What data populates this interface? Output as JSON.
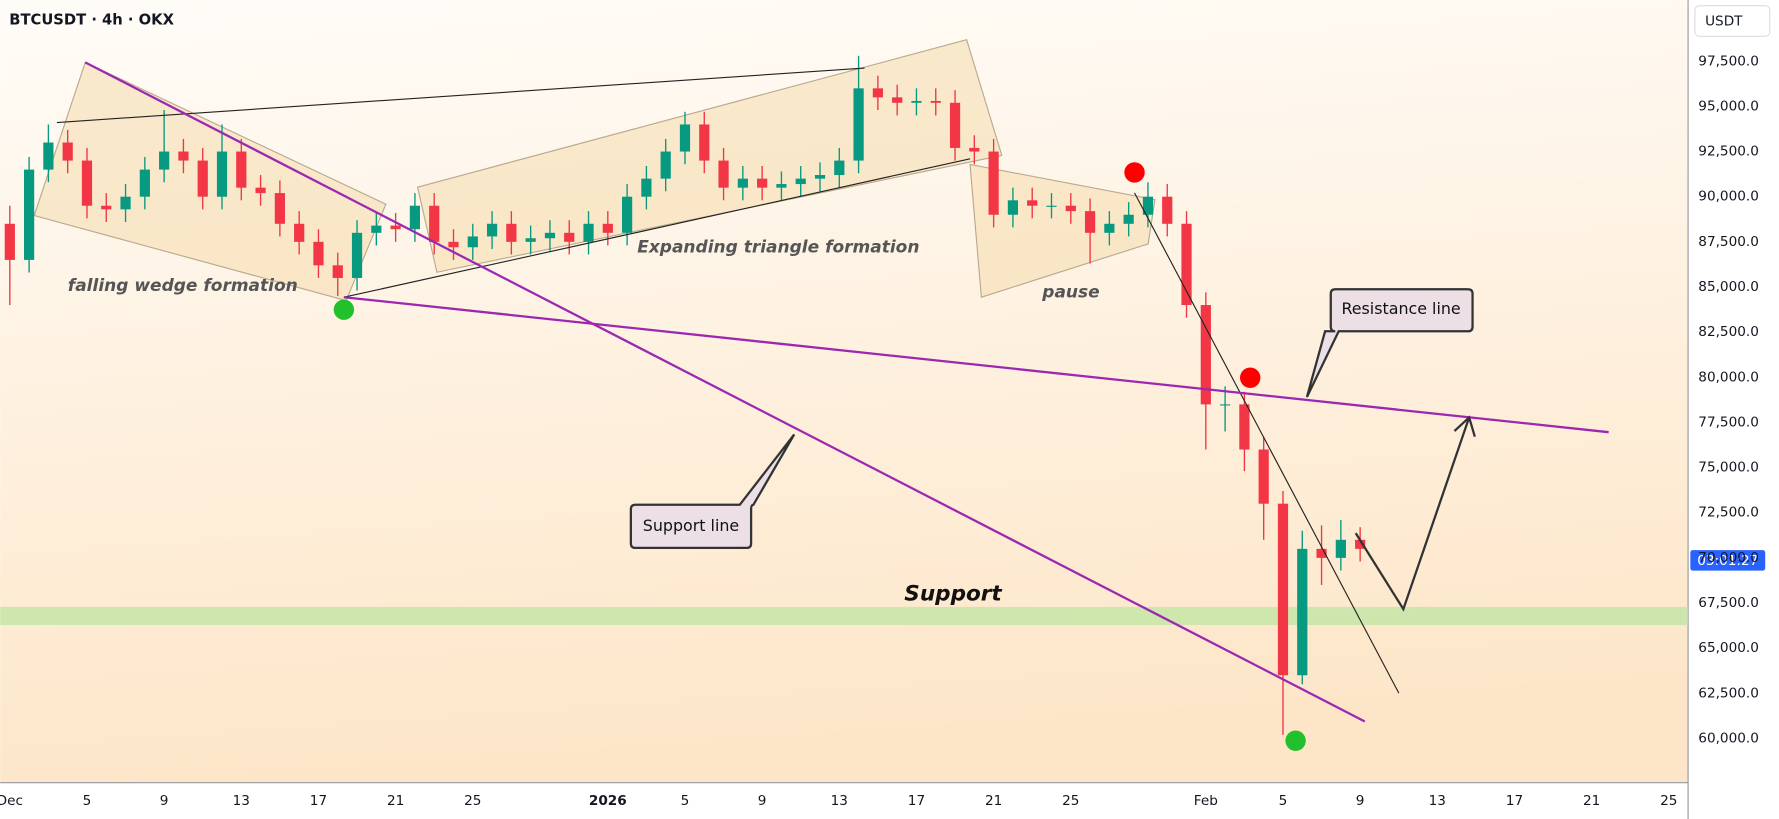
{
  "chart_data": {
    "type": "candlestick",
    "title": "BTCUSDT · 4h · OKX",
    "y_axis_unit": "USDT",
    "countdown": "03:01:27",
    "annotations": [
      "falling wedge formation",
      "Expanding triangle formation",
      "pause",
      "Support",
      "Support line",
      "Resistance line"
    ],
    "up_color": "#089981",
    "down_color": "#f23645",
    "grid": false,
    "x": [
      0,
      1,
      2,
      3,
      4,
      5,
      6,
      7,
      8,
      9,
      10,
      11,
      12,
      13,
      14,
      15,
      16,
      17,
      18,
      19,
      20,
      21,
      22,
      23,
      24,
      25,
      26,
      27,
      28,
      29,
      30,
      31,
      32,
      33,
      34,
      35,
      36,
      37,
      38,
      39,
      40,
      41,
      42,
      43,
      44,
      45,
      46,
      47,
      48,
      49,
      50,
      51,
      52,
      53,
      54,
      55,
      56,
      57,
      58,
      59,
      60,
      61,
      62,
      63,
      64,
      65,
      66,
      67,
      68,
      69,
      70
    ],
    "open": [
      88500,
      86500,
      91500,
      93000,
      92000,
      89500,
      89300,
      90000,
      91500,
      92500,
      92000,
      90000,
      92500,
      90500,
      90200,
      88500,
      87500,
      86200,
      85500,
      88000,
      88400,
      88200,
      89500,
      87500,
      87200,
      87800,
      88500,
      87500,
      87700,
      88000,
      87500,
      88500,
      88000,
      90000,
      91000,
      92500,
      94000,
      92000,
      90500,
      91000,
      90500,
      90700,
      91000,
      91200,
      92000,
      96000,
      95500,
      95200,
      95300,
      95200,
      92700,
      92500,
      89000,
      89800,
      89500,
      89500,
      89200,
      88000,
      88500,
      89000,
      90000,
      88500,
      84000,
      78500,
      78500,
      76000,
      73000,
      63500,
      70500,
      70000,
      71000
    ],
    "high": [
      89500,
      92200,
      94000,
      93700,
      92700,
      90200,
      90700,
      92200,
      94800,
      93200,
      92700,
      94000,
      93200,
      91200,
      90900,
      89200,
      88200,
      86900,
      88700,
      89100,
      89100,
      90200,
      90200,
      88200,
      88500,
      89200,
      89200,
      88400,
      88700,
      88700,
      89200,
      89200,
      90700,
      91700,
      93200,
      94700,
      94700,
      92700,
      91700,
      91700,
      91400,
      91700,
      91900,
      92700,
      97800,
      96700,
      96200,
      96000,
      96000,
      95900,
      93400,
      93200,
      90500,
      90500,
      90200,
      90200,
      89900,
      89200,
      89700,
      90800,
      90700,
      89200,
      84700,
      79500,
      79200,
      76700,
      73700,
      71500,
      71800,
      72100,
      71700
    ],
    "low": [
      84000,
      85800,
      90800,
      91300,
      88800,
      88600,
      88600,
      89300,
      90800,
      91300,
      89300,
      89300,
      89800,
      89500,
      87800,
      86800,
      85500,
      84500,
      84800,
      87300,
      87500,
      87500,
      86800,
      86500,
      86500,
      87100,
      86800,
      86800,
      87000,
      86800,
      86800,
      87300,
      87300,
      89300,
      90300,
      91800,
      91300,
      89800,
      89800,
      89800,
      89800,
      90000,
      90300,
      90500,
      91300,
      94800,
      94500,
      94500,
      94500,
      92000,
      91800,
      88300,
      88300,
      88800,
      88800,
      88500,
      86300,
      87300,
      87800,
      88300,
      87800,
      83300,
      76000,
      77000,
      74800,
      71000,
      60200,
      63000,
      68500,
      69300,
      69800
    ],
    "close": [
      86500,
      91500,
      93000,
      92000,
      89500,
      89300,
      90000,
      91500,
      92500,
      92000,
      90000,
      92500,
      90500,
      90200,
      88500,
      87500,
      86200,
      85500,
      88000,
      88400,
      88200,
      89500,
      87500,
      87200,
      87800,
      88500,
      87500,
      87700,
      88000,
      87500,
      88500,
      88000,
      90000,
      91000,
      92500,
      94000,
      92000,
      90500,
      91000,
      90500,
      90700,
      91000,
      91200,
      92000,
      96000,
      95500,
      95200,
      95300,
      95200,
      92700,
      92500,
      89000,
      89800,
      89500,
      89500,
      89200,
      88000,
      88500,
      89000,
      90000,
      88500,
      84000,
      78500,
      78500,
      76000,
      73000,
      63500,
      70500,
      70000,
      71000,
      70500
    ],
    "xlim": [
      -0.5,
      87
    ],
    "xticks": [
      {
        "value": 0,
        "label": "Dec"
      },
      {
        "value": 4,
        "label": "5"
      },
      {
        "value": 8,
        "label": "9"
      },
      {
        "value": 12,
        "label": "13"
      },
      {
        "value": 16,
        "label": "17"
      },
      {
        "value": 20,
        "label": "21"
      },
      {
        "value": 24,
        "label": "25"
      },
      {
        "value": 31,
        "label": "2026"
      },
      {
        "value": 35,
        "label": "5"
      },
      {
        "value": 39,
        "label": "9"
      },
      {
        "value": 43,
        "label": "13"
      },
      {
        "value": 47,
        "label": "17"
      },
      {
        "value": 51,
        "label": "21"
      },
      {
        "value": 55,
        "label": "25"
      },
      {
        "value": 62,
        "label": "Feb"
      },
      {
        "value": 66,
        "label": "5"
      },
      {
        "value": 70,
        "label": "9"
      },
      {
        "value": 74,
        "label": "13"
      },
      {
        "value": 78,
        "label": "17"
      },
      {
        "value": 82,
        "label": "21"
      },
      {
        "value": 86,
        "label": "25"
      }
    ],
    "ylim": [
      57500,
      100000
    ],
    "yticks": [
      {
        "value": 60000,
        "label": "60,000.0"
      },
      {
        "value": 62500,
        "label": "62,500.0"
      },
      {
        "value": 65000,
        "label": "65,000.0"
      },
      {
        "value": 67500,
        "label": "67,500.0"
      },
      {
        "value": 70000,
        "label": "70,000.0"
      },
      {
        "value": 72500,
        "label": "72,500.0"
      },
      {
        "value": 75000,
        "label": "75,000.0"
      },
      {
        "value": 77500,
        "label": "77,500.0"
      },
      {
        "value": 80000,
        "label": "80,000.0"
      },
      {
        "value": 82500,
        "label": "82,500.0"
      },
      {
        "value": 85000,
        "label": "85,000.0"
      },
      {
        "value": 87500,
        "label": "87,500.0"
      },
      {
        "value": 90000,
        "label": "90,000.0"
      },
      {
        "value": 92500,
        "label": "92,500.0"
      },
      {
        "value": 95000,
        "label": "95,000.0"
      },
      {
        "value": 97500,
        "label": "97,500.0"
      }
    ]
  }
}
